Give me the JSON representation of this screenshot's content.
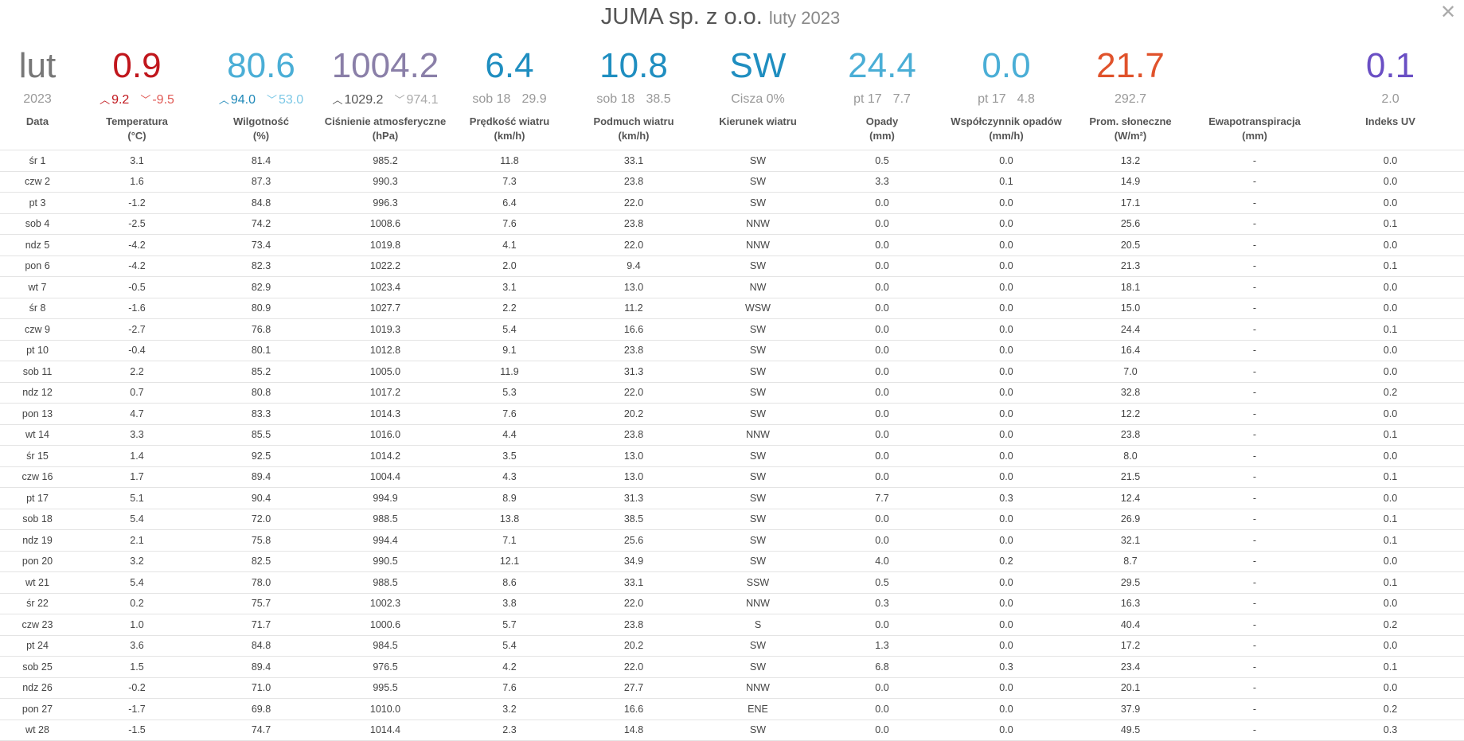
{
  "header": {
    "title": "JUMA sp. z o.o.",
    "subtitle": "luty 2023",
    "close_glyph": "✕"
  },
  "summary": {
    "date": {
      "main": "lut",
      "sub": "2023",
      "color": "#777777"
    },
    "temp": {
      "main": "0.9",
      "max": "9.2",
      "min": "-9.5",
      "color": "#c0161c",
      "min_color": "#e05a55"
    },
    "humidity": {
      "main": "80.6",
      "max": "94.0",
      "min": "53.0",
      "color": "#4aaed6",
      "max_color": "#1e88b8",
      "min_color": "#7cc8e6"
    },
    "pressure": {
      "main": "1004.2",
      "max": "1029.2",
      "min": "974.1",
      "color": "#8a7fa8",
      "max_color": "#555555",
      "min_color": "#aaaaaa"
    },
    "wind_speed": {
      "main": "6.4",
      "day": "sob 18",
      "value": "29.9",
      "color": "#1f8ec0"
    },
    "gust": {
      "main": "10.8",
      "day": "sob 18",
      "value": "38.5",
      "color": "#1f8ec0"
    },
    "wind_dir": {
      "main": "SW",
      "sub": "Cisza 0%",
      "color": "#1f8ec0"
    },
    "rain": {
      "main": "24.4",
      "day": "pt 17",
      "value": "7.7",
      "color": "#4aaed6"
    },
    "rain_rate": {
      "main": "0.0",
      "day": "pt 17",
      "value": "4.8",
      "color": "#4aaed6"
    },
    "solar": {
      "main": "21.7",
      "sub": "292.7",
      "color": "#e0522b"
    },
    "evapo": {
      "main": "",
      "sub": ""
    },
    "uv": {
      "main": "0.1",
      "sub": "2.0",
      "color": "#6a4fc4"
    }
  },
  "columns": [
    {
      "line1": "Data",
      "line2": ""
    },
    {
      "line1": "Temperatura",
      "line2": "(°C)"
    },
    {
      "line1": "Wilgotność",
      "line2": "(%)"
    },
    {
      "line1": "Ciśnienie atmosferyczne",
      "line2": "(hPa)"
    },
    {
      "line1": "Prędkość wiatru",
      "line2": "(km/h)"
    },
    {
      "line1": "Podmuch wiatru",
      "line2": "(km/h)"
    },
    {
      "line1": "Kierunek wiatru",
      "line2": ""
    },
    {
      "line1": "Opady",
      "line2": "(mm)"
    },
    {
      "line1": "Współczynnik opadów",
      "line2": "(mm/h)"
    },
    {
      "line1": "Prom. słoneczne",
      "line2": "(W/m²)"
    },
    {
      "line1": "Ewapotranspiracja",
      "line2": "(mm)"
    },
    {
      "line1": "Indeks UV",
      "line2": ""
    }
  ],
  "rows": [
    [
      "śr 1",
      "3.1",
      "81.4",
      "985.2",
      "11.8",
      "33.1",
      "SW",
      "0.5",
      "0.0",
      "13.2",
      "-",
      "0.0"
    ],
    [
      "czw 2",
      "1.6",
      "87.3",
      "990.3",
      "7.3",
      "23.8",
      "SW",
      "3.3",
      "0.1",
      "14.9",
      "-",
      "0.0"
    ],
    [
      "pt 3",
      "-1.2",
      "84.8",
      "996.3",
      "6.4",
      "22.0",
      "SW",
      "0.0",
      "0.0",
      "17.1",
      "-",
      "0.0"
    ],
    [
      "sob 4",
      "-2.5",
      "74.2",
      "1008.6",
      "7.6",
      "23.8",
      "NNW",
      "0.0",
      "0.0",
      "25.6",
      "-",
      "0.1"
    ],
    [
      "ndz 5",
      "-4.2",
      "73.4",
      "1019.8",
      "4.1",
      "22.0",
      "NNW",
      "0.0",
      "0.0",
      "20.5",
      "-",
      "0.0"
    ],
    [
      "pon 6",
      "-4.2",
      "82.3",
      "1022.2",
      "2.0",
      "9.4",
      "SW",
      "0.0",
      "0.0",
      "21.3",
      "-",
      "0.1"
    ],
    [
      "wt 7",
      "-0.5",
      "82.9",
      "1023.4",
      "3.1",
      "13.0",
      "NW",
      "0.0",
      "0.0",
      "18.1",
      "-",
      "0.0"
    ],
    [
      "śr 8",
      "-1.6",
      "80.9",
      "1027.7",
      "2.2",
      "11.2",
      "WSW",
      "0.0",
      "0.0",
      "15.0",
      "-",
      "0.0"
    ],
    [
      "czw 9",
      "-2.7",
      "76.8",
      "1019.3",
      "5.4",
      "16.6",
      "SW",
      "0.0",
      "0.0",
      "24.4",
      "-",
      "0.1"
    ],
    [
      "pt 10",
      "-0.4",
      "80.1",
      "1012.8",
      "9.1",
      "23.8",
      "SW",
      "0.0",
      "0.0",
      "16.4",
      "-",
      "0.0"
    ],
    [
      "sob 11",
      "2.2",
      "85.2",
      "1005.0",
      "11.9",
      "31.3",
      "SW",
      "0.0",
      "0.0",
      "7.0",
      "-",
      "0.0"
    ],
    [
      "ndz 12",
      "0.7",
      "80.8",
      "1017.2",
      "5.3",
      "22.0",
      "SW",
      "0.0",
      "0.0",
      "32.8",
      "-",
      "0.2"
    ],
    [
      "pon 13",
      "4.7",
      "83.3",
      "1014.3",
      "7.6",
      "20.2",
      "SW",
      "0.0",
      "0.0",
      "12.2",
      "-",
      "0.0"
    ],
    [
      "wt 14",
      "3.3",
      "85.5",
      "1016.0",
      "4.4",
      "23.8",
      "NNW",
      "0.0",
      "0.0",
      "23.8",
      "-",
      "0.1"
    ],
    [
      "śr 15",
      "1.4",
      "92.5",
      "1014.2",
      "3.5",
      "13.0",
      "SW",
      "0.0",
      "0.0",
      "8.0",
      "-",
      "0.0"
    ],
    [
      "czw 16",
      "1.7",
      "89.4",
      "1004.4",
      "4.3",
      "13.0",
      "SW",
      "0.0",
      "0.0",
      "21.5",
      "-",
      "0.1"
    ],
    [
      "pt 17",
      "5.1",
      "90.4",
      "994.9",
      "8.9",
      "31.3",
      "SW",
      "7.7",
      "0.3",
      "12.4",
      "-",
      "0.0"
    ],
    [
      "sob 18",
      "5.4",
      "72.0",
      "988.5",
      "13.8",
      "38.5",
      "SW",
      "0.0",
      "0.0",
      "26.9",
      "-",
      "0.1"
    ],
    [
      "ndz 19",
      "2.1",
      "75.8",
      "994.4",
      "7.1",
      "25.6",
      "SW",
      "0.0",
      "0.0",
      "32.1",
      "-",
      "0.1"
    ],
    [
      "pon 20",
      "3.2",
      "82.5",
      "990.5",
      "12.1",
      "34.9",
      "SW",
      "4.0",
      "0.2",
      "8.7",
      "-",
      "0.0"
    ],
    [
      "wt 21",
      "5.4",
      "78.0",
      "988.5",
      "8.6",
      "33.1",
      "SSW",
      "0.5",
      "0.0",
      "29.5",
      "-",
      "0.1"
    ],
    [
      "śr 22",
      "0.2",
      "75.7",
      "1002.3",
      "3.8",
      "22.0",
      "NNW",
      "0.3",
      "0.0",
      "16.3",
      "-",
      "0.0"
    ],
    [
      "czw 23",
      "1.0",
      "71.7",
      "1000.6",
      "5.7",
      "23.8",
      "S",
      "0.0",
      "0.0",
      "40.4",
      "-",
      "0.2"
    ],
    [
      "pt 24",
      "3.6",
      "84.8",
      "984.5",
      "5.4",
      "20.2",
      "SW",
      "1.3",
      "0.0",
      "17.2",
      "-",
      "0.0"
    ],
    [
      "sob 25",
      "1.5",
      "89.4",
      "976.5",
      "4.2",
      "22.0",
      "SW",
      "6.8",
      "0.3",
      "23.4",
      "-",
      "0.1"
    ],
    [
      "ndz 26",
      "-0.2",
      "71.0",
      "995.5",
      "7.6",
      "27.7",
      "NNW",
      "0.0",
      "0.0",
      "20.1",
      "-",
      "0.0"
    ],
    [
      "pon 27",
      "-1.7",
      "69.8",
      "1010.0",
      "3.2",
      "16.6",
      "ENE",
      "0.0",
      "0.0",
      "37.9",
      "-",
      "0.2"
    ],
    [
      "wt 28",
      "-1.5",
      "74.7",
      "1014.4",
      "2.3",
      "14.8",
      "SW",
      "0.0",
      "0.0",
      "49.5",
      "-",
      "0.3"
    ]
  ]
}
